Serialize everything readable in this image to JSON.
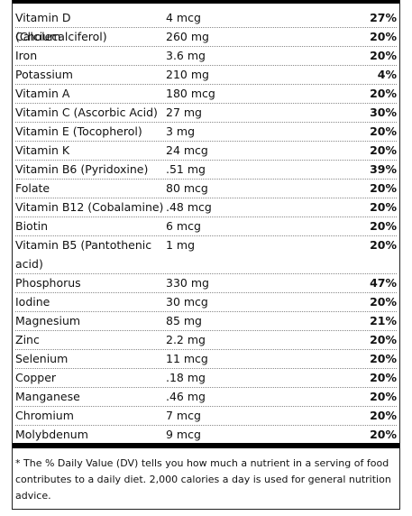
{
  "nutrients": [
    {
      "name": "Vitamin D (Cholecalciferol)",
      "amount": "4 mcg",
      "dv": "27%"
    },
    {
      "name": "Calcium",
      "amount": "260 mg",
      "dv": "20%"
    },
    {
      "name": "Iron",
      "amount": "3.6 mg",
      "dv": "20%"
    },
    {
      "name": "Potassium",
      "amount": "210 mg",
      "dv": "4%"
    },
    {
      "name": "Vitamin A",
      "amount": "180 mcg",
      "dv": "20%"
    },
    {
      "name": "Vitamin C (Ascorbic Acid)",
      "amount": "27 mg",
      "dv": "30%"
    },
    {
      "name": "Vitamin E (Tocopherol)",
      "amount": "3 mg",
      "dv": "20%"
    },
    {
      "name": "Vitamin K",
      "amount": "24 mcg",
      "dv": "20%"
    },
    {
      "name": "Vitamin B6 (Pyridoxine)",
      "amount": ".51 mg",
      "dv": "39%"
    },
    {
      "name": "Folate",
      "amount": "80 mcg",
      "dv": "20%"
    },
    {
      "name": "Vitamin B12 (Cobalamine)",
      "amount": ".48 mcg",
      "dv": "20%"
    },
    {
      "name": "Biotin",
      "amount": "6 mcg",
      "dv": "20%"
    },
    {
      "name": "Vitamin B5 (Pantothenic acid)",
      "amount": "1 mg",
      "dv": "20%"
    },
    {
      "name": "Phosphorus",
      "amount": "330 mg",
      "dv": "47%"
    },
    {
      "name": "Iodine",
      "amount": "30 mcg",
      "dv": "20%"
    },
    {
      "name": "Magnesium",
      "amount": "85 mg",
      "dv": "21%"
    },
    {
      "name": "Zinc",
      "amount": "2.2 mg",
      "dv": "20%"
    },
    {
      "name": "Selenium",
      "amount": "11 mcg",
      "dv": "20%"
    },
    {
      "name": "Copper",
      "amount": ".18 mg",
      "dv": "20%"
    },
    {
      "name": "Manganese",
      "amount": ".46 mg",
      "dv": "20%"
    },
    {
      "name": "Chromium",
      "amount": "7 mcg",
      "dv": "20%"
    },
    {
      "name": "Molybdenum",
      "amount": "9 mcg",
      "dv": "20%"
    }
  ],
  "footnote": "* The % Daily Value (DV) tells you how much a nutrient in a serving of food contributes to a daily diet. 2,000 calories a day is used for general nutrition advice."
}
